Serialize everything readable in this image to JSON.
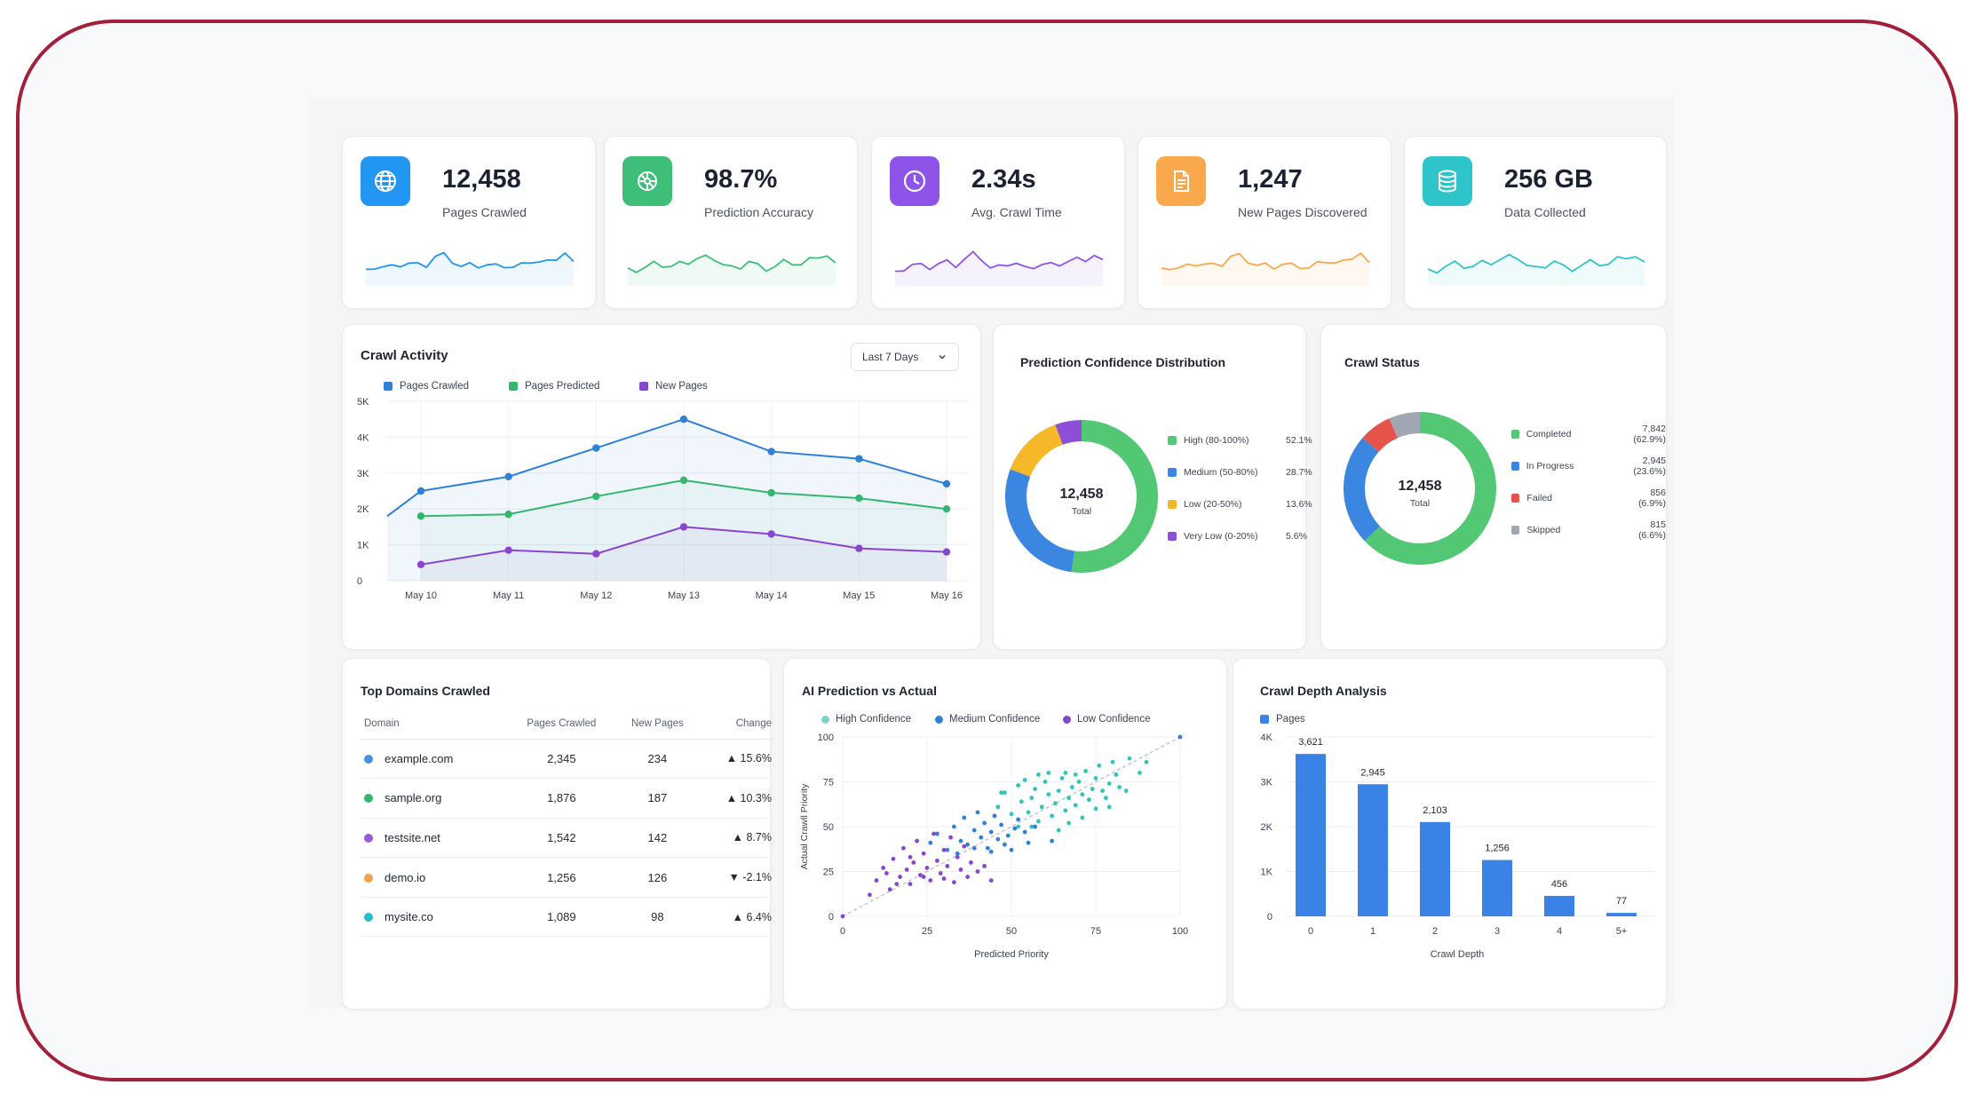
{
  "kpis": [
    {
      "value": "12,458",
      "label": "Pages Crawled",
      "icon": "globe-icon",
      "color": "#2196f3"
    },
    {
      "value": "98.7%",
      "label": "Prediction Accuracy",
      "icon": "brain-icon",
      "color": "#3dbf7a"
    },
    {
      "value": "2.34s",
      "label": "Avg. Crawl Time",
      "icon": "clock-icon",
      "color": "#8e54e9"
    },
    {
      "value": "1,247",
      "label": "New Pages Discovered",
      "icon": "document-icon",
      "color": "#f9a94b"
    },
    {
      "value": "256 GB",
      "label": "Data Collected",
      "icon": "database-icon",
      "color": "#2ec4c9"
    }
  ],
  "crawl_activity": {
    "title": "Crawl Activity",
    "range_select": "Last 7 Days",
    "chart_data": {
      "type": "line",
      "x": [
        "May 10",
        "May 11",
        "May 12",
        "May 13",
        "May 14",
        "May 15",
        "May 16"
      ],
      "y_ticks": [
        "0",
        "1K",
        "2K",
        "3K",
        "4K",
        "5K"
      ],
      "ylim": [
        0,
        5000
      ],
      "grid": true,
      "legend_position": "top-left",
      "series": [
        {
          "name": "Pages Crawled",
          "color": "#2f80d8",
          "values": [
            2500,
            2900,
            3700,
            4500,
            3600,
            3400,
            2700
          ]
        },
        {
          "name": "Pages Predicted",
          "color": "#35b66e",
          "values": [
            1800,
            1850,
            2350,
            2800,
            2450,
            2300,
            2000
          ]
        },
        {
          "name": "New Pages",
          "color": "#8a45d0",
          "values": [
            450,
            850,
            750,
            1500,
            1300,
            900,
            800
          ]
        }
      ]
    }
  },
  "prediction_confidence": {
    "title": "Prediction Confidence Distribution",
    "center_value": "12,458",
    "center_label": "Total",
    "chart_data": {
      "type": "pie",
      "slices": [
        {
          "label": "High (80-100%)",
          "value": 52.1,
          "display": "52.1%",
          "color": "#52c774"
        },
        {
          "label": "Medium (50-80%)",
          "value": 28.7,
          "display": "28.7%",
          "color": "#3a86e0"
        },
        {
          "label": "Low (20-50%)",
          "value": 13.6,
          "display": "13.6%",
          "color": "#f5b829"
        },
        {
          "label": "Very Low (0-20%)",
          "value": 5.6,
          "display": "5.6%",
          "color": "#8e4fd6"
        }
      ]
    }
  },
  "crawl_status": {
    "title": "Crawl Status",
    "center_value": "12,458",
    "center_label": "Total",
    "chart_data": {
      "type": "pie",
      "slices": [
        {
          "label": "Completed",
          "value": 62.9,
          "display": "7,842 (62.9%)",
          "color": "#52c774"
        },
        {
          "label": "In Progress",
          "value": 23.6,
          "display": "2,945 (23.6%)",
          "color": "#3a86e0"
        },
        {
          "label": "Failed",
          "value": 6.9,
          "display": "856 (6.9%)",
          "color": "#e5534b"
        },
        {
          "label": "Skipped",
          "value": 6.6,
          "display": "815 (6.6%)",
          "color": "#a0a7b2"
        }
      ]
    }
  },
  "top_domains": {
    "title": "Top Domains Crawled",
    "chart_data": {
      "type": "table",
      "columns": [
        "Domain",
        "Pages Crawled",
        "New Pages",
        "Change"
      ],
      "rows": [
        {
          "domain": "example.com",
          "pages": "2,345",
          "new": "234",
          "change": "▲ 15.6%",
          "dir": "up",
          "color": "#4a90e2"
        },
        {
          "domain": "sample.org",
          "pages": "1,876",
          "new": "187",
          "change": "▲ 10.3%",
          "dir": "up",
          "color": "#35b66e"
        },
        {
          "domain": "testsite.net",
          "pages": "1,542",
          "new": "142",
          "change": "▲ 8.7%",
          "dir": "up",
          "color": "#9b59d6"
        },
        {
          "domain": "demo.io",
          "pages": "1,256",
          "new": "126",
          "change": "▼ -2.1%",
          "dir": "down",
          "color": "#f5a04a"
        },
        {
          "domain": "mysite.co",
          "pages": "1,089",
          "new": "98",
          "change": "▲ 6.4%",
          "dir": "up",
          "color": "#26bfc9"
        }
      ]
    }
  },
  "ai_prediction": {
    "title": "AI Prediction vs Actual",
    "chart_data": {
      "type": "scatter",
      "xlabel": "Predicted Priority",
      "ylabel": "Actual Crawll Priority",
      "xlim": [
        0,
        100
      ],
      "ylim": [
        0,
        100
      ],
      "x_ticks": [
        "0",
        "25",
        "50",
        "75",
        "100"
      ],
      "y_ticks": [
        "0",
        "25",
        "50",
        "75",
        "100"
      ],
      "legend_position": "top-left",
      "series": [
        {
          "name": "High Confidence",
          "color": "#34c3b8",
          "points": [
            [
              46,
              61
            ],
            [
              48,
              69
            ],
            [
              50,
              57
            ],
            [
              52,
              73
            ],
            [
              53,
              64
            ],
            [
              55,
              58
            ],
            [
              56,
              66
            ],
            [
              57,
              71
            ],
            [
              58,
              53
            ],
            [
              59,
              61
            ],
            [
              60,
              75
            ],
            [
              61,
              68
            ],
            [
              62,
              56
            ],
            [
              63,
              63
            ],
            [
              64,
              70
            ],
            [
              65,
              77
            ],
            [
              66,
              59
            ],
            [
              67,
              66
            ],
            [
              68,
              72
            ],
            [
              69,
              62
            ],
            [
              70,
              75
            ],
            [
              71,
              68
            ],
            [
              72,
              81
            ],
            [
              73,
              65
            ],
            [
              74,
              71
            ],
            [
              75,
              77
            ],
            [
              76,
              84
            ],
            [
              77,
              70
            ],
            [
              78,
              66
            ],
            [
              79,
              74
            ],
            [
              80,
              86
            ],
            [
              81,
              79
            ],
            [
              82,
              72
            ],
            [
              85,
              88
            ],
            [
              88,
              80
            ],
            [
              90,
              86
            ],
            [
              54,
              76
            ],
            [
              66,
              80
            ],
            [
              61,
              80
            ],
            [
              58,
              79
            ],
            [
              69,
              79
            ],
            [
              75,
              60
            ],
            [
              52,
              50
            ],
            [
              56,
              50
            ],
            [
              71,
              55
            ],
            [
              84,
              70
            ],
            [
              79,
              61
            ],
            [
              64,
              48
            ],
            [
              67,
              52
            ],
            [
              47,
              69
            ]
          ]
        },
        {
          "name": "Medium Confidence",
          "color": "#2f80d8",
          "points": [
            [
              28,
              46
            ],
            [
              31,
              37
            ],
            [
              33,
              50
            ],
            [
              35,
              42
            ],
            [
              36,
              55
            ],
            [
              37,
              40
            ],
            [
              39,
              48
            ],
            [
              40,
              58
            ],
            [
              41,
              44
            ],
            [
              42,
              52
            ],
            [
              43,
              38
            ],
            [
              44,
              47
            ],
            [
              45,
              56
            ],
            [
              46,
              43
            ],
            [
              47,
              51
            ],
            [
              49,
              45
            ],
            [
              50,
              37
            ],
            [
              51,
              49
            ],
            [
              52,
              54
            ],
            [
              54,
              47
            ],
            [
              55,
              41
            ],
            [
              57,
              50
            ],
            [
              39,
              38
            ],
            [
              44,
              36
            ],
            [
              26,
              41
            ],
            [
              34,
              35
            ],
            [
              48,
              40
            ],
            [
              62,
              42
            ],
            [
              100,
              100
            ]
          ]
        },
        {
          "name": "Low Confidence",
          "color": "#8a45d0",
          "points": [
            [
              10,
              20
            ],
            [
              12,
              27
            ],
            [
              14,
              15
            ],
            [
              15,
              32
            ],
            [
              17,
              22
            ],
            [
              18,
              38
            ],
            [
              19,
              26
            ],
            [
              20,
              18
            ],
            [
              21,
              30
            ],
            [
              22,
              42
            ],
            [
              23,
              23
            ],
            [
              24,
              35
            ],
            [
              25,
              27
            ],
            [
              26,
              20
            ],
            [
              27,
              46
            ],
            [
              28,
              31
            ],
            [
              29,
              24
            ],
            [
              30,
              37
            ],
            [
              31,
              28
            ],
            [
              32,
              44
            ],
            [
              33,
              19
            ],
            [
              34,
              33
            ],
            [
              35,
              26
            ],
            [
              36,
              39
            ],
            [
              37,
              22
            ],
            [
              38,
              30
            ],
            [
              40,
              25
            ],
            [
              13,
              24
            ],
            [
              16,
              18
            ],
            [
              8,
              12
            ],
            [
              0,
              0
            ],
            [
              20,
              33
            ],
            [
              24,
              22
            ],
            [
              30,
              21
            ],
            [
              42,
              28
            ],
            [
              44,
              20
            ]
          ]
        }
      ]
    }
  },
  "crawl_depth": {
    "title": "Crawl Depth Analysis",
    "chart_data": {
      "type": "bar",
      "categories": [
        "0",
        "1",
        "2",
        "3",
        "4",
        "5+"
      ],
      "values": [
        3621,
        2945,
        2103,
        1256,
        456,
        77
      ],
      "labels": [
        "3,621",
        "2,945",
        "2,103",
        "1,256",
        "456",
        "77"
      ],
      "series_name": "Pages",
      "color": "#3b82e6",
      "xlabel": "Crawl Depth",
      "ylim": [
        0,
        4000
      ],
      "y_ticks": [
        "0",
        "1K",
        "2K",
        "3K",
        "4K"
      ],
      "grid": true,
      "legend_position": "top-left"
    }
  }
}
